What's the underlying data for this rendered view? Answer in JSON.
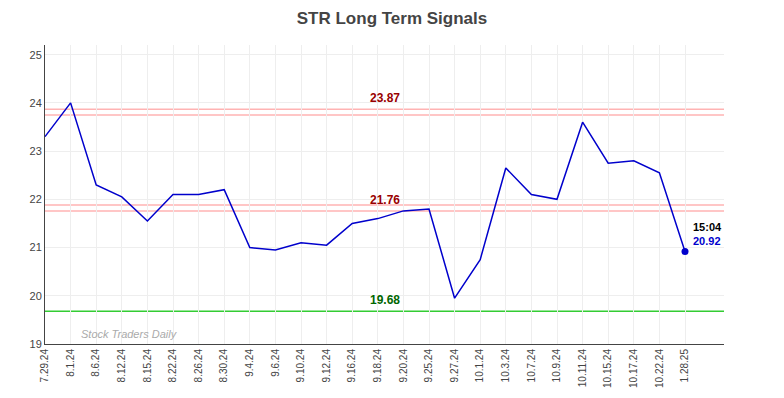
{
  "chart_data": {
    "type": "line",
    "title": "STR Long Term Signals",
    "categories": [
      "7.29.24",
      "8.1.24",
      "8.6.24",
      "8.12.24",
      "8.15.24",
      "8.22.24",
      "8.26.24",
      "8.30.24",
      "9.4.24",
      "9.6.24",
      "9.10.24",
      "9.12.24",
      "9.16.24",
      "9.18.24",
      "9.20.24",
      "9.25.24",
      "9.27.24",
      "10.1.24",
      "10.3.24",
      "10.7.24",
      "10.9.24",
      "10.11.24",
      "10.15.24",
      "10.17.24",
      "10.22.24",
      "1.28.25"
    ],
    "values": [
      23.3,
      24.0,
      22.3,
      22.05,
      21.55,
      22.1,
      22.1,
      22.2,
      21.0,
      20.95,
      21.1,
      21.05,
      21.5,
      21.6,
      21.76,
      21.8,
      19.95,
      20.75,
      22.65,
      22.1,
      22.0,
      23.6,
      22.75,
      22.8,
      22.55,
      20.92
    ],
    "color": "#0000cc",
    "marker": "circle",
    "ylim": [
      19.0,
      25.2
    ],
    "yticks": [
      19,
      20,
      21,
      22,
      23,
      24,
      25
    ],
    "grid": true,
    "hlines": [
      {
        "value": 23.75,
        "color": "#ffb3b3"
      },
      {
        "value": 23.87,
        "color": "#ffb3b3"
      },
      {
        "value": 21.76,
        "color": "#ffb3b3"
      },
      {
        "value": 21.88,
        "color": "#ffb3b3"
      },
      {
        "value": 19.68,
        "color": "#33cc33"
      }
    ],
    "annotations": [
      {
        "text": "23.87",
        "y": 23.87,
        "color": "#990000"
      },
      {
        "text": "21.76",
        "y": 21.76,
        "color": "#990000"
      },
      {
        "text": "19.68",
        "y": 19.68,
        "color": "#006600"
      }
    ],
    "end_labels": [
      {
        "text": "15:04",
        "color": "#000000"
      },
      {
        "text": "20.92",
        "color": "#0000cc"
      }
    ],
    "watermark": "Stock Traders Daily"
  }
}
